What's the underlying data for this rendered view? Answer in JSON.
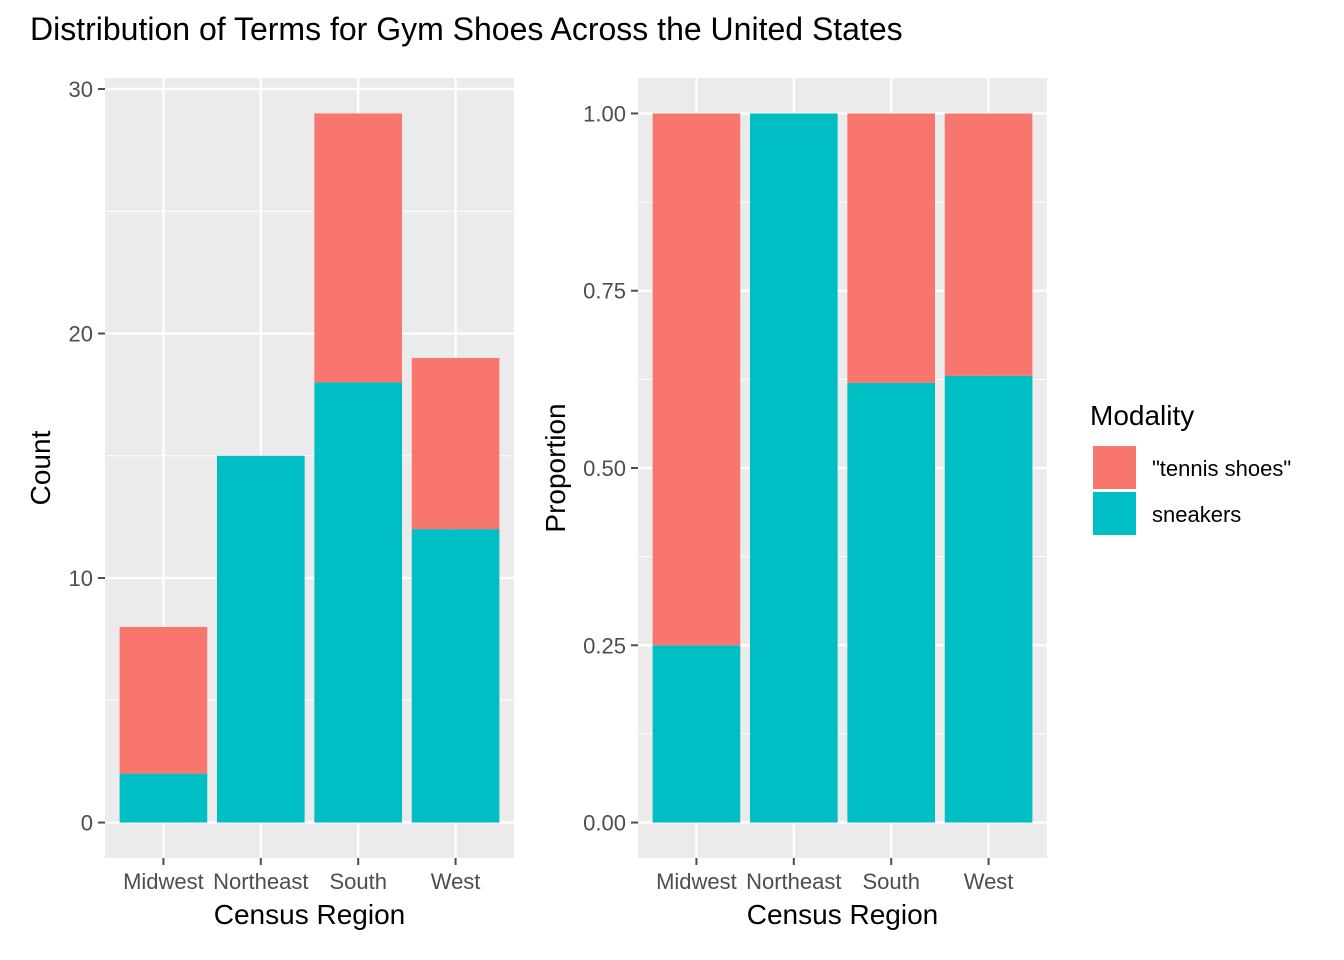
{
  "title": "Distribution of Terms for Gym Shoes Across the United States",
  "colors": {
    "tennis_shoes": "#F8766D",
    "sneakers": "#00BFC4",
    "panel_bg": "#EBEBEB",
    "grid": "#FFFFFF",
    "tick": "#4D4D4D"
  },
  "legend": {
    "title": "Modality",
    "items": [
      {
        "label": "\"tennis shoes\"",
        "color_key": "tennis_shoes"
      },
      {
        "label": "sneakers",
        "color_key": "sneakers"
      }
    ]
  },
  "chart_data": [
    {
      "type": "bar",
      "stacked": true,
      "categories": [
        "Midwest",
        "Northeast",
        "South",
        "West"
      ],
      "series": [
        {
          "name": "\"tennis shoes\"",
          "color_key": "tennis_shoes",
          "values": [
            6,
            0,
            11,
            7
          ]
        },
        {
          "name": "sneakers",
          "color_key": "sneakers",
          "values": [
            2,
            15,
            18,
            12
          ]
        }
      ],
      "xlabel": "Census Region",
      "ylabel": "Count",
      "ylim": [
        -1.45,
        30.45
      ],
      "yticks": [
        0,
        10,
        20,
        30
      ],
      "ytick_labels": [
        "0",
        "10",
        "20",
        "30"
      ],
      "grid": true
    },
    {
      "type": "bar",
      "stacked": true,
      "categories": [
        "Midwest",
        "Northeast",
        "South",
        "West"
      ],
      "series": [
        {
          "name": "\"tennis shoes\"",
          "color_key": "tennis_shoes",
          "values": [
            0.75,
            0,
            0.38,
            0.37
          ]
        },
        {
          "name": "sneakers",
          "color_key": "sneakers",
          "values": [
            0.25,
            1.0,
            0.62,
            0.63
          ]
        }
      ],
      "xlabel": "Census Region",
      "ylabel": "Proportion",
      "ylim": [
        -0.05,
        1.05
      ],
      "yticks": [
        0,
        0.25,
        0.5,
        0.75,
        1.0
      ],
      "ytick_labels": [
        "0.00",
        "0.25",
        "0.50",
        "0.75",
        "1.00"
      ],
      "grid": true
    }
  ]
}
